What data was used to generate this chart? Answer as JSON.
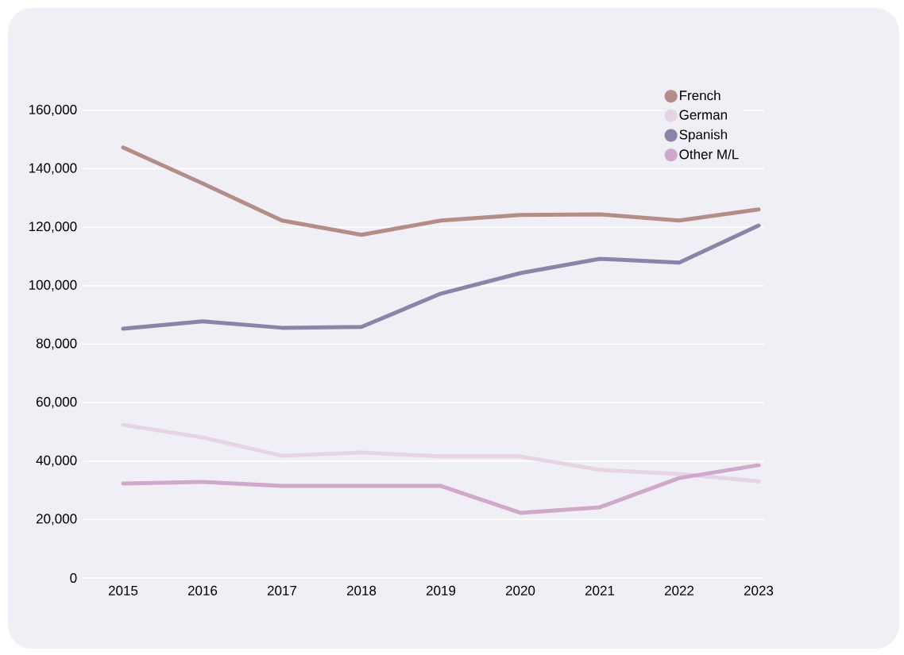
{
  "chart_data": {
    "type": "line",
    "categories": [
      "2015",
      "2016",
      "2017",
      "2018",
      "2019",
      "2020",
      "2021",
      "2022",
      "2023"
    ],
    "series": [
      {
        "name": "French",
        "color": "#b48c88",
        "values": [
          147300,
          135000,
          122300,
          117400,
          122300,
          124200,
          124400,
          122300,
          126100
        ]
      },
      {
        "name": "German",
        "color": "#e6d4e4",
        "values": [
          52400,
          48100,
          41800,
          42900,
          41600,
          41600,
          37000,
          35600,
          33100
        ]
      },
      {
        "name": "Spanish",
        "color": "#8c84a8",
        "values": [
          85300,
          87800,
          85600,
          85900,
          97300,
          104300,
          109200,
          107900,
          120600
        ]
      },
      {
        "name": "Other M/L",
        "color": "#d0a8cc",
        "values": [
          32300,
          32900,
          31500,
          31500,
          31500,
          22300,
          24200,
          34200,
          38600
        ]
      }
    ],
    "ylim": [
      0,
      160000
    ],
    "yticks": [
      {
        "value": 0,
        "label": "0"
      },
      {
        "value": 20000,
        "label": "20,000"
      },
      {
        "value": 40000,
        "label": "40,000"
      },
      {
        "value": 60000,
        "label": "60,000"
      },
      {
        "value": 80000,
        "label": "80,000"
      },
      {
        "value": 100000,
        "label": "100,000"
      },
      {
        "value": 120000,
        "label": "120,000"
      },
      {
        "value": 140000,
        "label": "140,000"
      },
      {
        "value": 160000,
        "label": "160,000"
      }
    ],
    "grid": "y",
    "legend": "top right",
    "line_style": "solid"
  }
}
